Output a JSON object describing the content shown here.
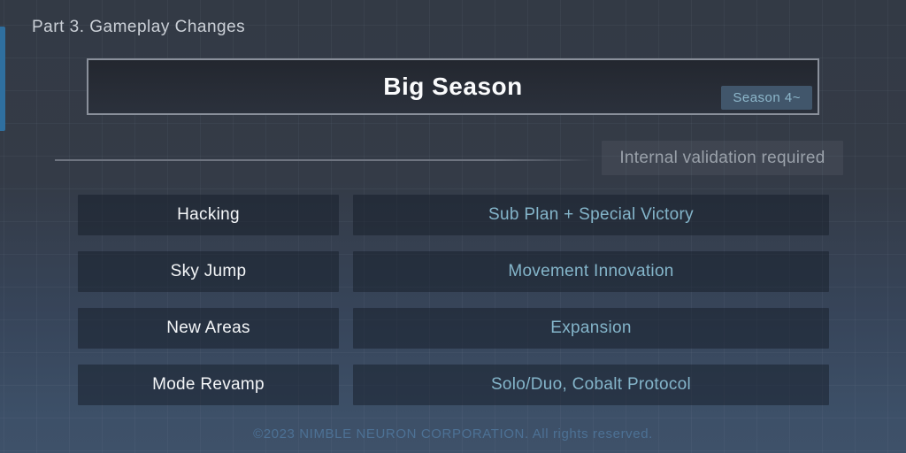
{
  "page_title": "Part 3. Gameplay Changes",
  "header": {
    "title": "Big Season",
    "badge": "Season 4~"
  },
  "note": {
    "label": "Internal validation required"
  },
  "table": {
    "rows": [
      {
        "feature": "Hacking",
        "description": "Sub Plan + Special Victory"
      },
      {
        "feature": "Sky Jump",
        "description": "Movement Innovation"
      },
      {
        "feature": "New Areas",
        "description": "Expansion"
      },
      {
        "feature": "Mode Revamp",
        "description": "Solo/Duo, Cobalt Protocol"
      }
    ]
  },
  "footer": {
    "copyright": "©2023 NIMBLE NEURON CORPORATION. All rights reserved."
  },
  "colors": {
    "accent_bar": "#2f6f9f",
    "background_top": "#333a45",
    "background_bottom": "#3e5169",
    "header_border": "#8a909b",
    "badge_bg": "#41566b",
    "badge_text": "#8db7cb",
    "description_text": "#84b5ca",
    "note_text": "#9aa1aa",
    "footer_text": "#4d7195"
  }
}
